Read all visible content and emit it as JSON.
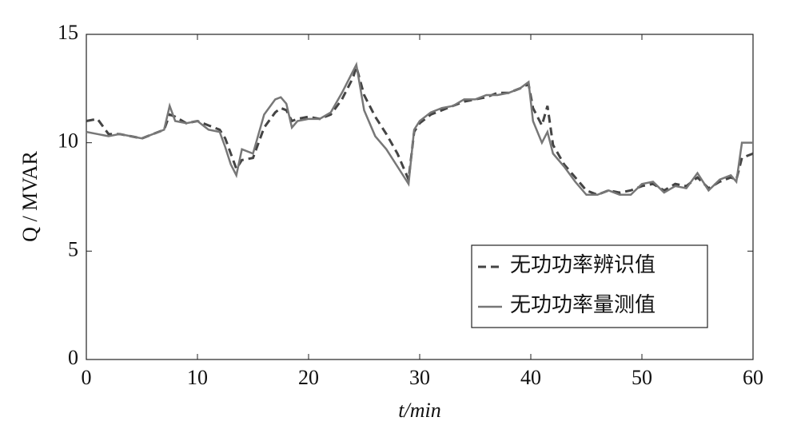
{
  "chart_data": {
    "type": "line",
    "xlabel": "t/min",
    "ylabel": "Q / MVAR",
    "x": [
      0,
      1,
      2,
      3,
      4,
      5,
      6,
      7,
      7.5,
      8,
      9,
      10,
      11,
      12,
      12.5,
      13,
      13.5,
      14,
      15,
      16,
      17,
      17.5,
      18,
      18.5,
      19,
      20,
      21,
      22,
      23,
      24,
      24.3,
      25,
      26,
      27,
      28,
      29,
      29.5,
      30,
      31,
      32,
      33,
      34,
      35,
      36,
      37,
      38,
      39,
      39.8,
      40.2,
      41,
      41.5,
      42,
      43,
      44,
      45,
      46,
      47,
      48,
      49,
      50,
      51,
      52,
      53,
      54,
      55,
      56,
      57,
      58,
      58.5,
      59,
      60
    ],
    "series": [
      {
        "name": "无功功率辨识值",
        "color": "#444444",
        "dash": true,
        "values": [
          11.0,
          11.1,
          10.4,
          10.4,
          10.3,
          10.2,
          10.4,
          10.6,
          11.3,
          11.2,
          10.9,
          11.0,
          10.8,
          10.6,
          10.2,
          9.5,
          8.8,
          9.2,
          9.3,
          10.7,
          11.4,
          11.6,
          11.5,
          11.0,
          11.1,
          11.2,
          11.1,
          11.3,
          12.0,
          13.0,
          13.5,
          12.2,
          11.2,
          10.4,
          9.5,
          8.3,
          10.5,
          10.9,
          11.3,
          11.5,
          11.7,
          11.9,
          12.0,
          12.1,
          12.3,
          12.3,
          12.5,
          12.7,
          11.6,
          10.8,
          11.7,
          9.9,
          9.0,
          8.4,
          7.8,
          7.6,
          7.8,
          7.7,
          7.8,
          8.0,
          8.1,
          7.8,
          8.1,
          8.0,
          8.4,
          7.9,
          8.2,
          8.4,
          8.3,
          9.3,
          9.5
        ]
      },
      {
        "name": "无功功率量测值",
        "color": "#777777",
        "dash": false,
        "values": [
          10.5,
          10.4,
          10.3,
          10.4,
          10.3,
          10.2,
          10.4,
          10.6,
          11.7,
          11.0,
          10.9,
          11.0,
          10.6,
          10.5,
          9.8,
          9.0,
          8.5,
          9.7,
          9.5,
          11.3,
          12.0,
          12.1,
          11.8,
          10.7,
          11.0,
          11.1,
          11.1,
          11.4,
          12.3,
          13.3,
          13.6,
          11.5,
          10.3,
          9.7,
          8.9,
          8.1,
          10.6,
          11.0,
          11.4,
          11.6,
          11.7,
          12.0,
          12.0,
          12.2,
          12.2,
          12.3,
          12.5,
          12.8,
          11.0,
          10.0,
          10.5,
          9.5,
          8.9,
          8.2,
          7.6,
          7.6,
          7.8,
          7.6,
          7.6,
          8.1,
          8.2,
          7.7,
          8.0,
          7.9,
          8.6,
          7.8,
          8.3,
          8.5,
          8.2,
          10.0,
          10.0
        ]
      }
    ],
    "xlim": [
      0,
      60
    ],
    "xticks": [
      0,
      10,
      20,
      30,
      40,
      50,
      60
    ],
    "ylim": [
      0,
      15
    ],
    "yticks": [
      0,
      5,
      10,
      15
    ],
    "legend": "lower right",
    "grid": false
  }
}
